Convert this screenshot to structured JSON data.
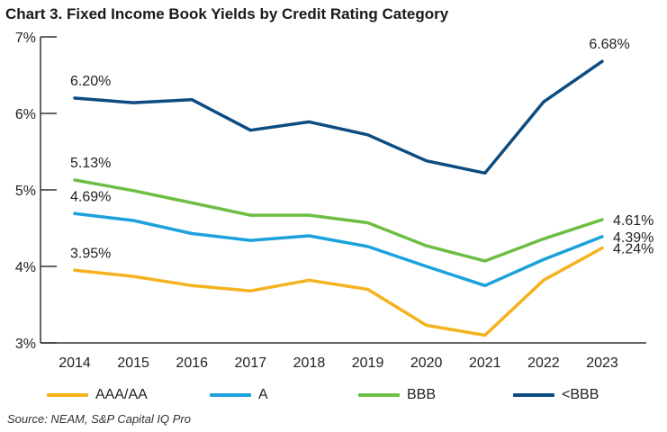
{
  "chart_data": {
    "type": "line",
    "title": "Chart 3. Fixed Income Book Yields by Credit Rating Category",
    "xlabel": "",
    "ylabel": "",
    "x": [
      "2014",
      "2015",
      "2016",
      "2017",
      "2018",
      "2019",
      "2020",
      "2021",
      "2022",
      "2023"
    ],
    "ylim": [
      3,
      7
    ],
    "yticks": [
      3,
      4,
      5,
      6,
      7
    ],
    "ytick_labels": [
      "3%",
      "4%",
      "5%",
      "6%",
      "7%"
    ],
    "grid": false,
    "legend_position": "bottom",
    "series": [
      {
        "name": "AAA/AA",
        "color": "#F5B21E",
        "values": [
          3.95,
          3.87,
          3.75,
          3.68,
          3.82,
          3.7,
          3.23,
          3.1,
          3.82,
          4.24
        ],
        "data_labels": [
          {
            "index": 0,
            "text": "3.95%",
            "position": "above"
          },
          {
            "index": 9,
            "text": "4.24%",
            "position": "right"
          }
        ]
      },
      {
        "name": "A",
        "color": "#1BA1DB",
        "values": [
          4.69,
          4.6,
          4.43,
          4.34,
          4.4,
          4.26,
          4.0,
          3.75,
          4.09,
          4.39
        ],
        "data_labels": [
          {
            "index": 0,
            "text": "4.69%",
            "position": "above"
          },
          {
            "index": 9,
            "text": "4.39%",
            "position": "right"
          }
        ]
      },
      {
        "name": "BBB",
        "color": "#6DBE45",
        "values": [
          5.13,
          4.99,
          4.83,
          4.67,
          4.67,
          4.57,
          4.27,
          4.07,
          4.36,
          4.61
        ],
        "data_labels": [
          {
            "index": 0,
            "text": "5.13%",
            "position": "above"
          },
          {
            "index": 9,
            "text": "4.61%",
            "position": "right"
          }
        ]
      },
      {
        "name": "<BBB",
        "color": "#0D4C80",
        "values": [
          6.2,
          6.14,
          6.18,
          5.78,
          5.89,
          5.72,
          5.38,
          5.22,
          6.15,
          6.68
        ],
        "data_labels": [
          {
            "index": 0,
            "text": "6.20%",
            "position": "above"
          },
          {
            "index": 9,
            "text": "6.68%",
            "position": "above"
          }
        ]
      }
    ]
  },
  "source_note": "Source: NEAM, S&P Capital IQ Pro"
}
